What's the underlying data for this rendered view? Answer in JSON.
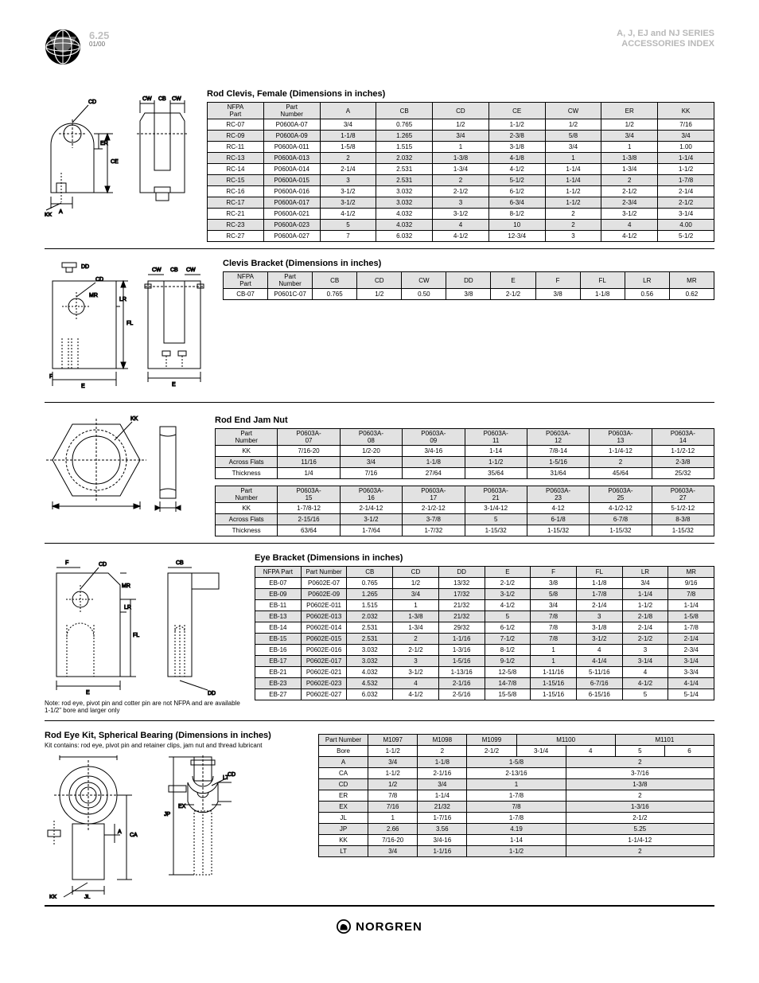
{
  "header": {
    "pageno": "6.25",
    "sub": "01/00",
    "prodline1": "A, J, EJ and NJ SERIES",
    "prodline2": "ACCESSORIES INDEX"
  },
  "rodClevis": {
    "title": "Rod Clevis, Female (Dimensions in inches)",
    "cols": [
      "NFPA\nPart",
      "Part\nNumber",
      "A",
      "CB",
      "CD",
      "CE",
      "CW",
      "ER",
      "KK"
    ],
    "rows": [
      [
        "RC-07",
        "P0600A-07",
        "3/4",
        "0.765",
        "1/2",
        "1-1/2",
        "1/2",
        "1/2",
        "7/16"
      ],
      [
        "RC-09",
        "P0600A-09",
        "1-1/8",
        "1.265",
        "3/4",
        "2-3/8",
        "5/8",
        "3/4",
        "3/4"
      ],
      [
        "RC-11",
        "P0600A-011",
        "1-5/8",
        "1.515",
        "1",
        "3-1/8",
        "3/4",
        "1",
        "1.00"
      ],
      [
        "RC-13",
        "P0600A-013",
        "2",
        "2.032",
        "1-3/8",
        "4-1/8",
        "1",
        "1-3/8",
        "1-1/4"
      ],
      [
        "RC-14",
        "P0600A-014",
        "2-1/4",
        "2.531",
        "1-3/4",
        "4-1/2",
        "1-1/4",
        "1-3/4",
        "1-1/2"
      ],
      [
        "RC-15",
        "P0600A-015",
        "3",
        "2.531",
        "2",
        "5-1/2",
        "1-1/4",
        "2",
        "1-7/8"
      ],
      [
        "RC-16",
        "P0600A-016",
        "3-1/2",
        "3.032",
        "2-1/2",
        "6-1/2",
        "1-1/2",
        "2-1/2",
        "2-1/4"
      ],
      [
        "RC-17",
        "P0600A-017",
        "3-1/2",
        "3.032",
        "3",
        "6-3/4",
        "1-1/2",
        "2-3/4",
        "2-1/2"
      ],
      [
        "RC-21",
        "P0600A-021",
        "4-1/2",
        "4.032",
        "3-1/2",
        "8-1/2",
        "2",
        "3-1/2",
        "3-1/4"
      ],
      [
        "RC-23",
        "P0600A-023",
        "5",
        "4.032",
        "4",
        "10",
        "2",
        "4",
        "4.00"
      ],
      [
        "RC-27",
        "P0600A-027",
        "7",
        "6.032",
        "4-1/2",
        "12-3/4",
        "3",
        "4-1/2",
        "5-1/2"
      ]
    ]
  },
  "clevisBracket": {
    "title": "Clevis Bracket (Dimensions in inches)",
    "cols": [
      "NFPA\nPart",
      "Part\nNumber",
      "CB",
      "CD",
      "CW",
      "DD",
      "E",
      "F",
      "FL",
      "LR",
      "MR"
    ],
    "rows": [
      [
        "CB-07",
        "P0601C-07",
        "0.765",
        "1/2",
        "0.50",
        "3/8",
        "2-1/2",
        "3/8",
        "1-1/8",
        "0.56",
        "0.62"
      ]
    ]
  },
  "jamNut": {
    "title": "Rod End Jam Nut",
    "t1cols": [
      "Part\nNumber",
      "P0603A-\n07",
      "P0603A-\n08",
      "P0603A-\n09",
      "P0603A-\n11",
      "P0603A-\n12",
      "P0603A-\n13",
      "P0603A-\n14"
    ],
    "t1rows": [
      [
        "KK",
        "7/16-20",
        "1/2-20",
        "3/4-16",
        "1-14",
        "7/8-14",
        "1-1/4-12",
        "1-1/2-12"
      ],
      [
        "Across Flats",
        "11/16",
        "3/4",
        "1-1/8",
        "1-1/2",
        "1-5/16",
        "2",
        "2-3/8"
      ],
      [
        "Thickness",
        "1/4",
        "7/16",
        "27/64",
        "35/64",
        "31/64",
        "45/64",
        "25/32"
      ]
    ],
    "t2cols": [
      "Part\nNumber",
      "P0603A-\n15",
      "P0603A-\n16",
      "P0603A-\n17",
      "P0603A-\n21",
      "P0603A-\n23",
      "P0603A-\n25",
      "P0603A-\n27"
    ],
    "t2rows": [
      [
        "KK",
        "1-7/8-12",
        "2-1/4-12",
        "2-1/2-12",
        "3-1/4-12",
        "4-12",
        "4-1/2-12",
        "5-1/2-12"
      ],
      [
        "Across Flats",
        "2-15/16",
        "3-1/2",
        "3-7/8",
        "5",
        "6-1/8",
        "6-7/8",
        "8-3/8"
      ],
      [
        "Thickness",
        "63/64",
        "1-7/64",
        "1-7/32",
        "1-15/32",
        "1-15/32",
        "1-15/32",
        "1-15/32"
      ]
    ]
  },
  "eyeBracket": {
    "title": "Eye Bracket (Dimensions in inches)",
    "cols": [
      "NFPA Part",
      "Part Number",
      "CB",
      "CD",
      "DD",
      "E",
      "F",
      "FL",
      "LR",
      "MR"
    ],
    "rows": [
      [
        "EB-07",
        "P0602E-07",
        "0.765",
        "1/2",
        "13/32",
        "2-1/2",
        "3/8",
        "1-1/8",
        "3/4",
        "9/16"
      ],
      [
        "EB-09",
        "P0602E-09",
        "1.265",
        "3/4",
        "17/32",
        "3-1/2",
        "5/8",
        "1-7/8",
        "1-1/4",
        "7/8"
      ],
      [
        "EB-11",
        "P0602E-011",
        "1.515",
        "1",
        "21/32",
        "4-1/2",
        "3/4",
        "2-1/4",
        "1-1/2",
        "1-1/4"
      ],
      [
        "EB-13",
        "P0602E-013",
        "2.032",
        "1-3/8",
        "21/32",
        "5",
        "7/8",
        "3",
        "2-1/8",
        "1-5/8"
      ],
      [
        "EB-14",
        "P0602E-014",
        "2.531",
        "1-3/4",
        "29/32",
        "6-1/2",
        "7/8",
        "3-1/8",
        "2-1/4",
        "1-7/8"
      ],
      [
        "EB-15",
        "P0602E-015",
        "2.531",
        "2",
        "1-1/16",
        "7-1/2",
        "7/8",
        "3-1/2",
        "2-1/2",
        "2-1/4"
      ],
      [
        "EB-16",
        "P0602E-016",
        "3.032",
        "2-1/2",
        "1-3/16",
        "8-1/2",
        "1",
        "4",
        "3",
        "2-3/4"
      ],
      [
        "EB-17",
        "P0602E-017",
        "3.032",
        "3",
        "1-5/16",
        "9-1/2",
        "1",
        "4-1/4",
        "3-1/4",
        "3-1/4"
      ],
      [
        "EB-21",
        "P0602E-021",
        "4.032",
        "3-1/2",
        "1-13/16",
        "12-5/8",
        "1-11/16",
        "5-11/16",
        "4",
        "3-3/4"
      ],
      [
        "EB-23",
        "P0602E-023",
        "4.532",
        "4",
        "2-1/16",
        "14-7/8",
        "1-15/16",
        "6-7/16",
        "4-1/2",
        "4-1/4"
      ],
      [
        "EB-27",
        "P0602E-027",
        "6.032",
        "4-1/2",
        "2-5/16",
        "15-5/8",
        "1-15/16",
        "6-15/16",
        "5",
        "5-1/4"
      ]
    ],
    "note": "Note: rod eye, pivot pin and cotter pin are not NFPA and are available 1-1/2\" bore and larger only"
  },
  "rodEyeKit": {
    "title": "Rod Eye Kit, Spherical Bearing (Dimensions in inches)",
    "note": "Kit contains: rod eye, pivot pin and retainer clips, jam nut and thread lubricant",
    "rows": [
      [
        "",
        "M1097",
        "M1098",
        "M1099",
        "M1100",
        "M1101"
      ],
      [
        "Bore",
        "1-1/2",
        "2",
        "2-1/2",
        "3-1/4",
        "4",
        "5",
        "6"
      ],
      [
        "A",
        "3/4",
        "1-1/8",
        "1-5/8",
        "2"
      ],
      [
        "CA",
        "1-1/2",
        "2-1/16",
        "2-13/16",
        "3-7/16"
      ],
      [
        "CD",
        "1/2",
        "3/4",
        "1",
        "1-3/8"
      ],
      [
        "ER",
        "7/8",
        "1-1/4",
        "1-7/8",
        "2"
      ],
      [
        "EX",
        "7/16",
        "21/32",
        "7/8",
        "1-3/16"
      ],
      [
        "JL",
        "1",
        "1-7/16",
        "1-7/8",
        "2-1/2"
      ],
      [
        "JP",
        "2.66",
        "3.56",
        "4.19",
        "5.25"
      ],
      [
        "KK",
        "7/16-20",
        "3/4-16",
        "1-14",
        "1-1/4-12"
      ],
      [
        "LT",
        "3/4",
        "1-1/16",
        "1-1/2",
        "2"
      ]
    ]
  },
  "footer": {
    "brand": "NORGREN"
  }
}
